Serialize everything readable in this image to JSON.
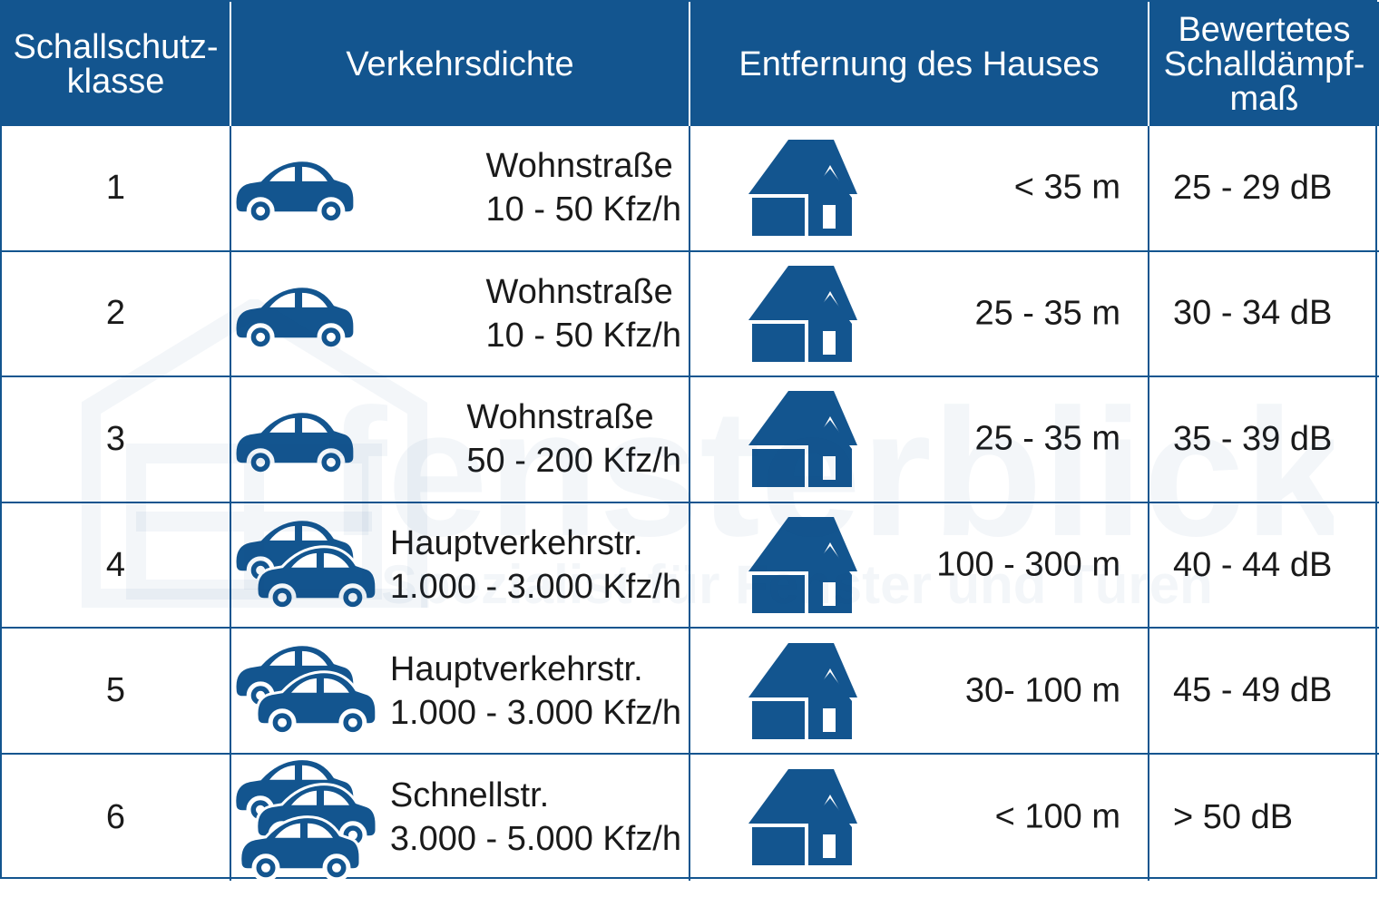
{
  "header": {
    "col1": "Schallschutz-\nklasse",
    "col2": "Verkehrsdichte",
    "col3": "Entfernung des Hauses",
    "col4": "Bewertetes\nSchalldämpf-\nmaß"
  },
  "rows": [
    {
      "klasse": "1",
      "road": "Wohnstraße",
      "traffic": "10 - 50 Kfz/h",
      "cars": 1,
      "distance": "< 35 m",
      "damping": "25 - 29 dB"
    },
    {
      "klasse": "2",
      "road": "Wohnstraße",
      "traffic": "10 - 50 Kfz/h",
      "cars": 1,
      "distance": "25 - 35 m",
      "damping": "30 - 34 dB"
    },
    {
      "klasse": "3",
      "road": "Wohnstraße",
      "traffic": "50 - 200 Kfz/h",
      "cars": 1,
      "distance": "25 - 35 m",
      "damping": "35 - 39 dB"
    },
    {
      "klasse": "4",
      "road": "Hauptverkehrstr.",
      "traffic": "1.000 - 3.000 Kfz/h",
      "cars": 2,
      "distance": "100 - 300 m",
      "damping": "40 - 44 dB"
    },
    {
      "klasse": "5",
      "road": "Hauptverkehrstr.",
      "traffic": "1.000 - 3.000 Kfz/h",
      "cars": 2,
      "distance": "30- 100 m",
      "damping": "45 - 49 dB"
    },
    {
      "klasse": "6",
      "road": "Schnellstr.",
      "traffic": "3.000 - 5.000 Kfz/h",
      "cars": 3,
      "distance": "< 100 m",
      "damping": "> 50 dB"
    }
  ],
  "watermark": {
    "brand": "fensterblick",
    "tagline": "Spezialist für Fenster und Türen"
  },
  "colors": {
    "primary": "#13558f",
    "header_text": "#ffffff"
  },
  "icons": {
    "vehicle": "car-icon",
    "building": "house-icon"
  }
}
